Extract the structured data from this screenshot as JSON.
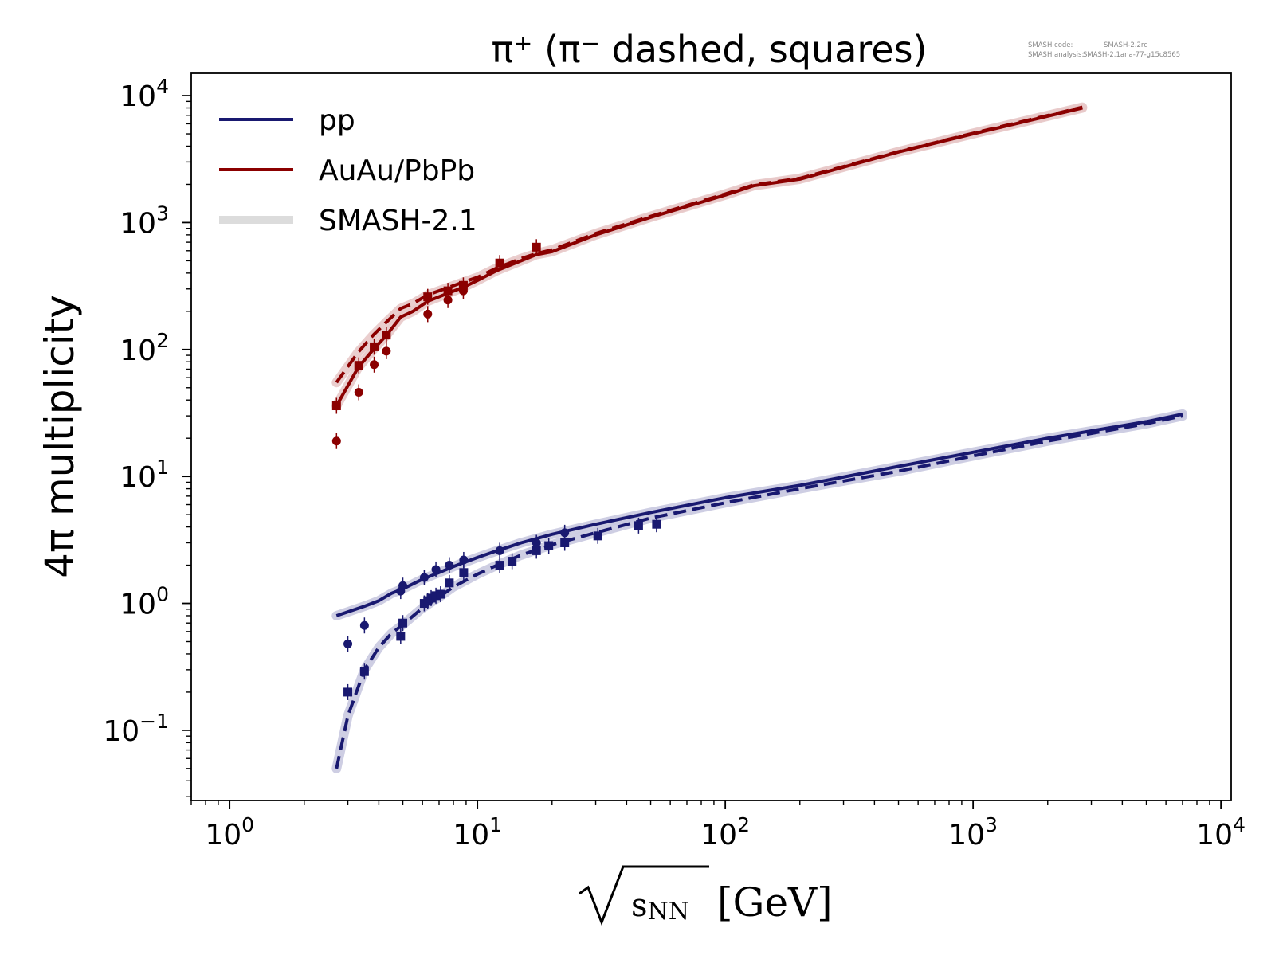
{
  "chart_data": {
    "type": "line",
    "title": "π⁺ (π⁻ dashed, squares)",
    "watermark": {
      "code_label": "SMASH code:",
      "code_value": "SMASH-2.2rc",
      "analysis_label": "SMASH analysis:",
      "analysis_value": "SMASH-2.1ana-77-g15c8565"
    },
    "xlabel": "√sNN [GeV]",
    "xlabel_parts": {
      "var": "s",
      "sub": "NN",
      "unit": "[GeV]"
    },
    "ylabel": "4π multiplicity",
    "xscale": "log",
    "yscale": "log",
    "xlim": [
      0.7,
      11000
    ],
    "ylim": [
      0.028,
      15000
    ],
    "x_ticks": [
      {
        "value": 1,
        "base": "10",
        "exp": "0"
      },
      {
        "value": 10,
        "base": "10",
        "exp": "1"
      },
      {
        "value": 100,
        "base": "10",
        "exp": "2"
      },
      {
        "value": 1000,
        "base": "10",
        "exp": "3"
      },
      {
        "value": 10000,
        "base": "10",
        "exp": "4"
      }
    ],
    "y_ticks": [
      {
        "value": 0.1,
        "base": "10",
        "exp": "−1"
      },
      {
        "value": 1,
        "base": "10",
        "exp": "0"
      },
      {
        "value": 10,
        "base": "10",
        "exp": "1"
      },
      {
        "value": 100,
        "base": "10",
        "exp": "2"
      },
      {
        "value": 1000,
        "base": "10",
        "exp": "3"
      },
      {
        "value": 10000,
        "base": "10",
        "exp": "4"
      }
    ],
    "legend": {
      "position": "top-left",
      "entries": [
        {
          "label": "pp",
          "color": "#191970",
          "style": "solid"
        },
        {
          "label": "AuAu/PbPb",
          "color": "#8b0000",
          "style": "solid"
        },
        {
          "label": "SMASH-2.1",
          "color": "#dcdcdc",
          "style": "band"
        }
      ]
    },
    "colors": {
      "pp": "#191970",
      "AuAu": "#8b0000",
      "band": "#dcdcdc"
    },
    "series": [
      {
        "system": "AuAu",
        "particle": "pi+",
        "style": "solid",
        "x": [
          2.7,
          3.3,
          3.8,
          4.3,
          4.9,
          5.5,
          6.3,
          7.7,
          8.8,
          10,
          12,
          15,
          17.3,
          20,
          30,
          50,
          100,
          130,
          200,
          500,
          1000,
          2760
        ],
        "y": [
          36,
          72,
          100,
          130,
          180,
          200,
          240,
          280,
          310,
          350,
          420,
          500,
          560,
          590,
          800,
          1100,
          1650,
          1950,
          2200,
          3600,
          5000,
          8000
        ]
      },
      {
        "system": "AuAu",
        "particle": "pi-",
        "style": "dashed",
        "x": [
          2.7,
          3.3,
          3.8,
          4.3,
          4.9,
          5.5,
          6.3,
          7.7,
          8.8,
          10,
          12,
          15,
          17.3,
          20,
          30,
          50,
          100,
          130,
          200,
          500,
          1000,
          2760
        ],
        "y": [
          55,
          95,
          130,
          165,
          210,
          230,
          270,
          310,
          340,
          370,
          440,
          520,
          570,
          610,
          820,
          1120,
          1680,
          1980,
          2230,
          3620,
          5050,
          8100
        ]
      },
      {
        "system": "pp",
        "particle": "pi+",
        "style": "solid",
        "x": [
          2.7,
          3.5,
          4.0,
          4.5,
          5.0,
          6.0,
          7.0,
          8.0,
          10,
          12,
          15,
          20,
          30,
          50,
          100,
          200,
          500,
          1000,
          2000,
          5000,
          7000
        ],
        "y": [
          0.8,
          0.95,
          1.05,
          1.2,
          1.3,
          1.55,
          1.75,
          1.95,
          2.3,
          2.6,
          3.0,
          3.5,
          4.2,
          5.2,
          6.8,
          8.5,
          12,
          15.5,
          20,
          27,
          31
        ]
      },
      {
        "system": "pp",
        "particle": "pi-",
        "style": "dashed",
        "x": [
          2.7,
          3.0,
          3.5,
          4.0,
          4.5,
          5.0,
          6.0,
          7.0,
          8.0,
          10,
          12,
          15,
          20,
          30,
          50,
          100,
          200,
          500,
          1000,
          2000,
          5000,
          7000
        ],
        "y": [
          0.05,
          0.13,
          0.3,
          0.45,
          0.58,
          0.68,
          0.92,
          1.12,
          1.35,
          1.7,
          2.0,
          2.4,
          2.9,
          3.6,
          4.7,
          6.2,
          8.0,
          11,
          14.5,
          19,
          26,
          30
        ]
      }
    ],
    "data_points": [
      {
        "system": "AuAu",
        "particle": "pi+",
        "marker": "circle",
        "x": [
          2.7,
          3.32,
          3.83,
          4.29,
          6.3,
          7.6,
          8.77
        ],
        "y": [
          19,
          46,
          76,
          97,
          190,
          245,
          290
        ]
      },
      {
        "system": "AuAu",
        "particle": "pi-",
        "marker": "square",
        "x": [
          2.7,
          3.32,
          3.83,
          4.29,
          6.3,
          7.6,
          8.77,
          12.3,
          17.3
        ],
        "y": [
          36,
          75,
          105,
          130,
          260,
          290,
          320,
          480,
          640
        ]
      },
      {
        "system": "pp",
        "particle": "pi+",
        "marker": "circle",
        "x": [
          3.0,
          3.5,
          4.9,
          5.0,
          6.1,
          6.8,
          7.7,
          8.8,
          12.3,
          17.3,
          22.5
        ],
        "y": [
          0.48,
          0.67,
          1.25,
          1.38,
          1.6,
          1.85,
          2.0,
          2.2,
          2.6,
          3.0,
          3.6
        ]
      },
      {
        "system": "pp",
        "particle": "pi-",
        "marker": "square",
        "x": [
          3.0,
          3.5,
          4.9,
          5.0,
          6.1,
          6.3,
          6.5,
          6.8,
          7.1,
          7.7,
          8.8,
          12.3,
          13.8,
          17.3,
          19.4,
          22.5,
          30.6,
          44.7,
          52.8
        ],
        "y": [
          0.2,
          0.29,
          0.55,
          0.7,
          1.0,
          1.05,
          1.1,
          1.15,
          1.18,
          1.45,
          1.75,
          2.0,
          2.15,
          2.6,
          2.85,
          3.0,
          3.4,
          4.1,
          4.2
        ]
      }
    ]
  }
}
